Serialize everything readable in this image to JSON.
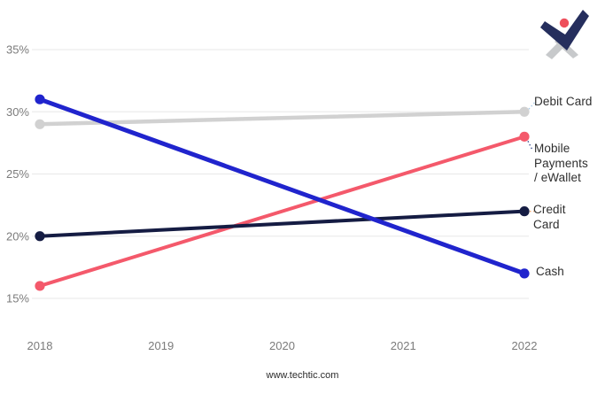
{
  "page": {
    "background": "#ffffff"
  },
  "footer": {
    "url_text": "www.techtic.com"
  },
  "logo": {
    "name": "techtic-logo",
    "navy": "#252e5d",
    "gray": "#c7c9cb",
    "red": "#ee4f5c"
  },
  "chart_data": {
    "type": "line",
    "title": "",
    "x_axis": {
      "ticks": [
        2018,
        2019,
        2020,
        2021,
        2022
      ],
      "min": 2018,
      "max": 2022
    },
    "y_axis": {
      "tick_labels": [
        "35%",
        "30%",
        "25%",
        "20%",
        "15%"
      ],
      "tick_values": [
        35,
        30,
        25,
        20,
        15
      ],
      "unit": "percent",
      "range": [
        15,
        35
      ]
    },
    "grid": true,
    "gridline_color": "#ececec",
    "tick_color": "#7b7b7b",
    "label_color": "#2e2e2e",
    "legend_position": "right-of-line-ends",
    "series": [
      {
        "name": "Debit Card",
        "display_label": "Debit Card",
        "color": "#d1d1d1",
        "leader_color": "#a9cbe7",
        "stroke_width": 4.5,
        "points": [
          {
            "x": 2018,
            "y": 29
          },
          {
            "x": 2022,
            "y": 30
          }
        ]
      },
      {
        "name": "Mobile Payments / eWallet",
        "display_label": "Mobile\nPayments\n/ eWallet",
        "color": "#f4596b",
        "leader_color": "#3d5192",
        "stroke_width": 4,
        "points": [
          {
            "x": 2018,
            "y": 16
          },
          {
            "x": 2022,
            "y": 28
          }
        ]
      },
      {
        "name": "Credit Card",
        "display_label": "Credit\nCard",
        "color": "#151c43",
        "leader_color": "#efa76f",
        "stroke_width": 4,
        "points": [
          {
            "x": 2018,
            "y": 20
          },
          {
            "x": 2022,
            "y": 22
          }
        ]
      },
      {
        "name": "Cash",
        "display_label": "Cash",
        "color": "#2024cd",
        "leader_color": "",
        "stroke_width": 5,
        "points": [
          {
            "x": 2018,
            "y": 31
          },
          {
            "x": 2022,
            "y": 17
          }
        ]
      }
    ]
  }
}
